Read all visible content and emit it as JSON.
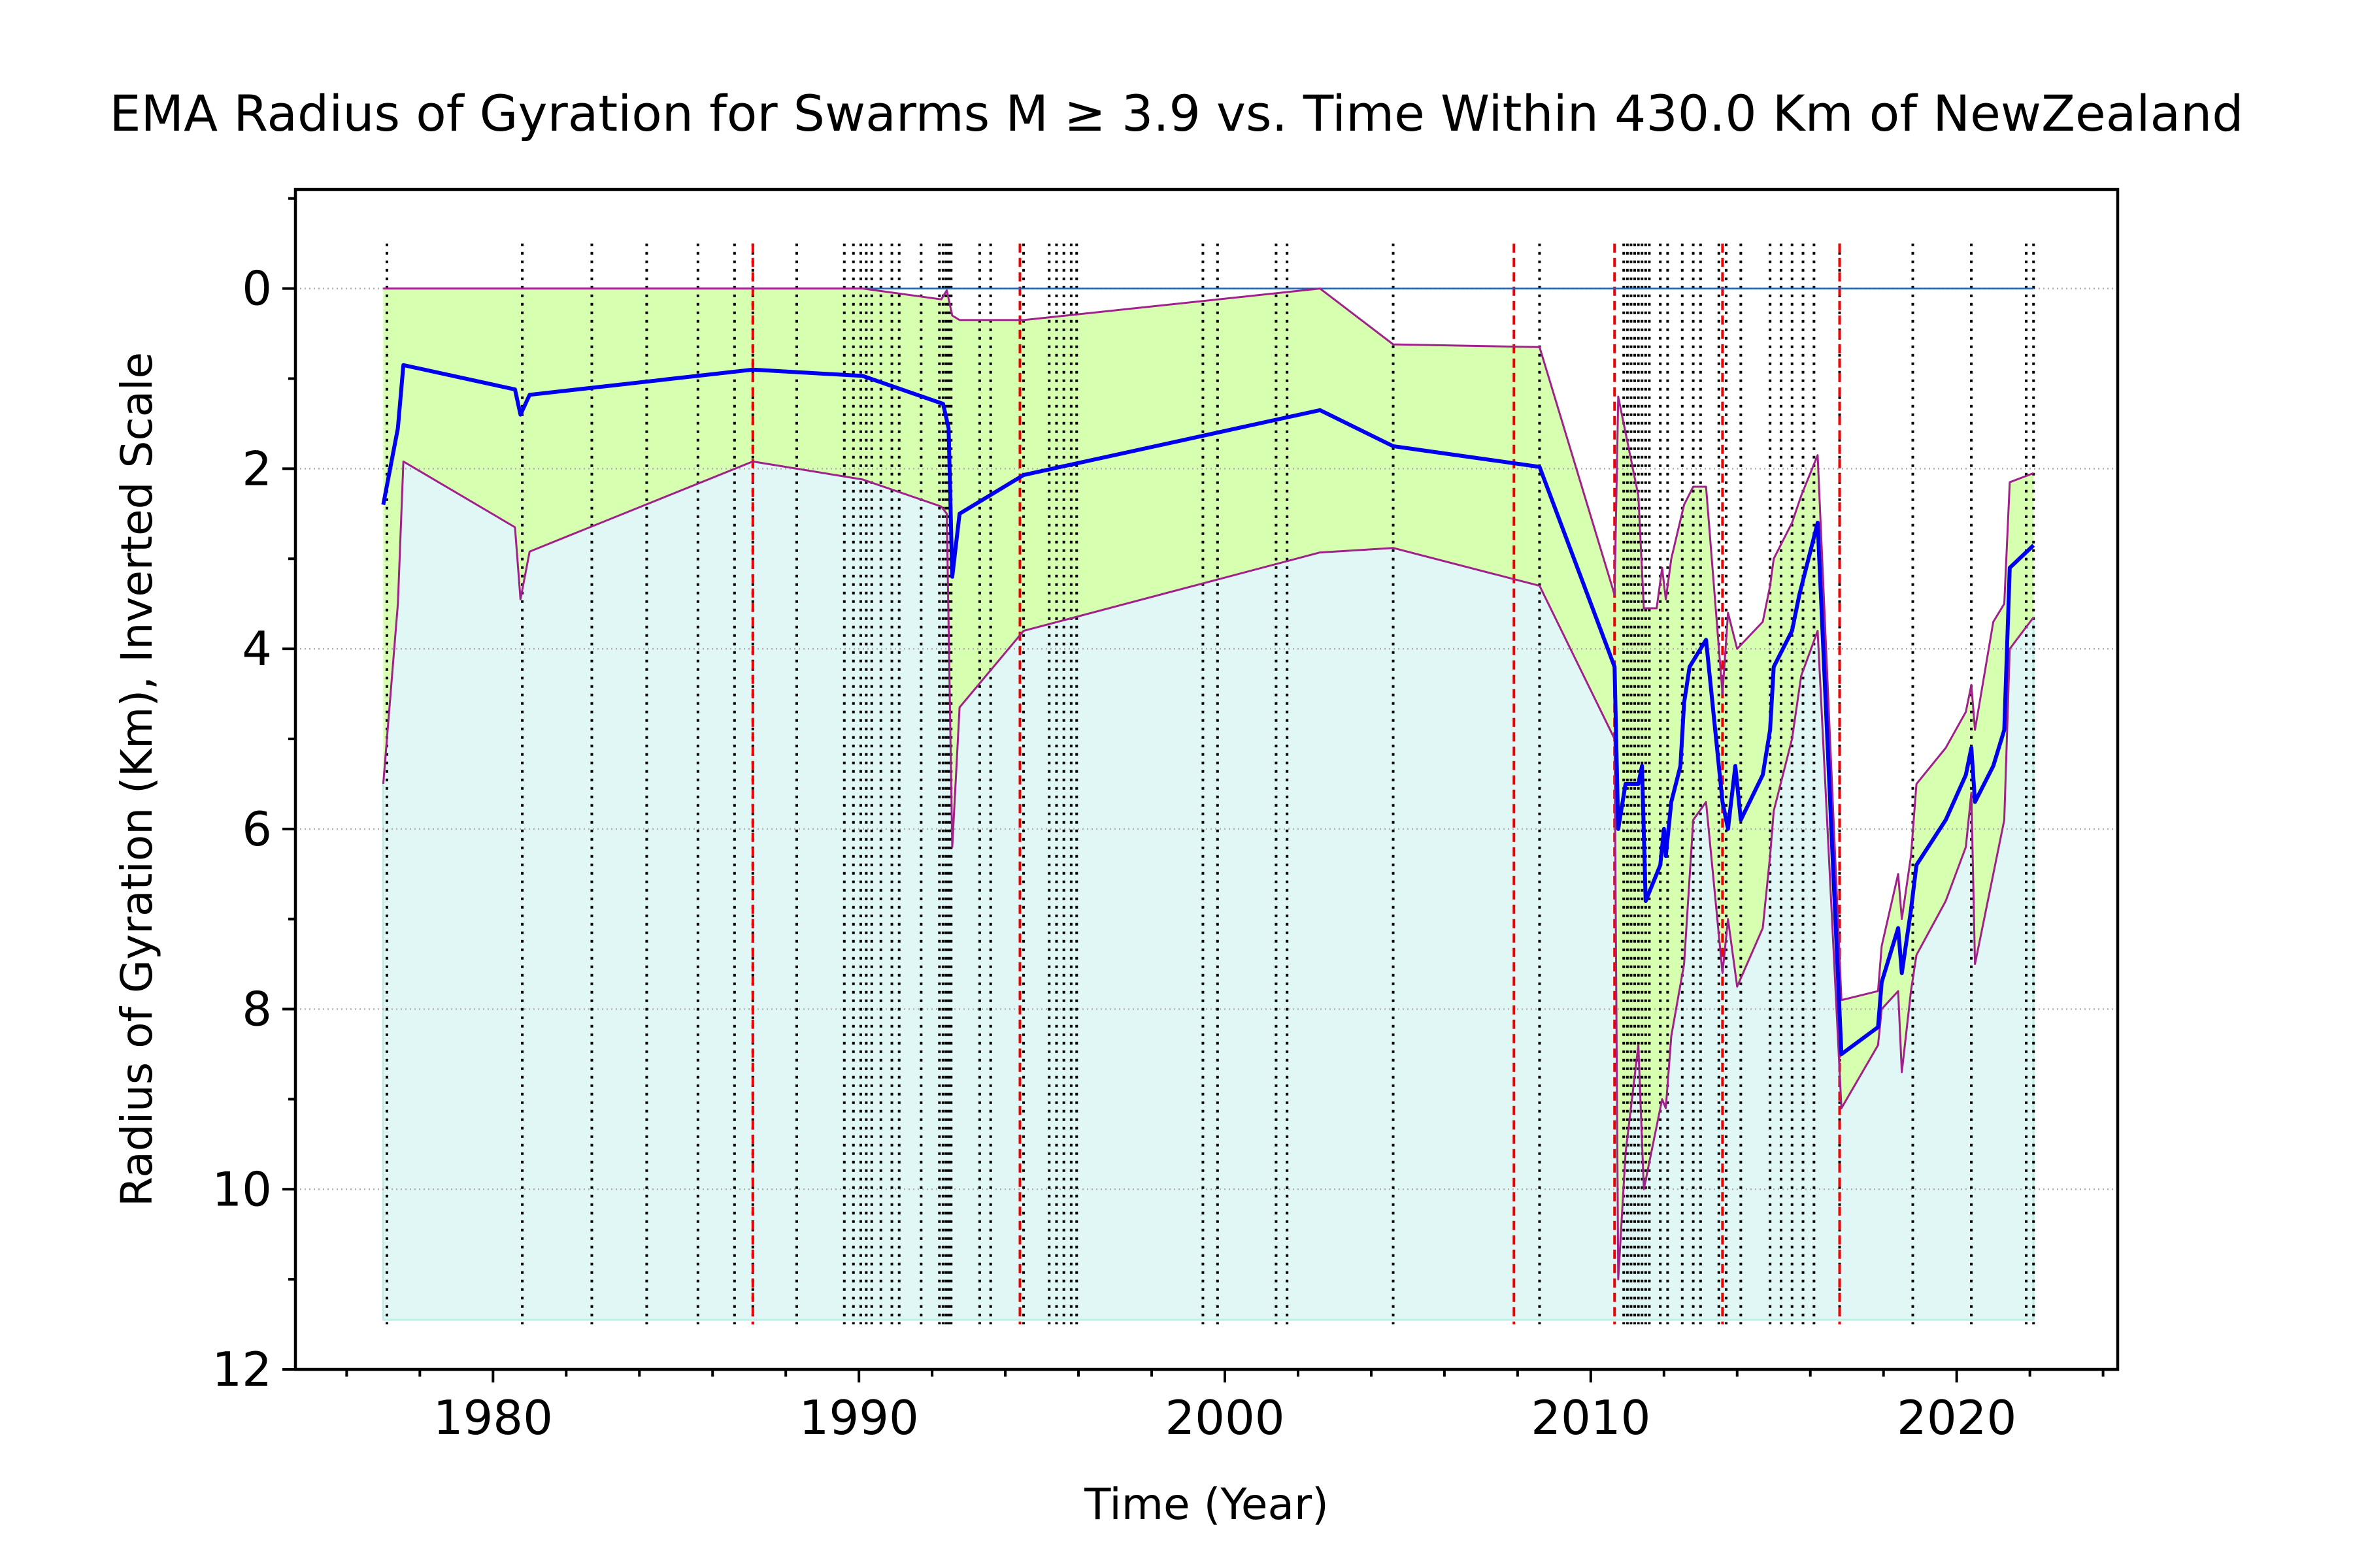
{
  "chart_data": {
    "type": "line",
    "title": "EMA Radius of Gyration for Swarms M ≥ 3.9 vs. Time Within 430.0 Km of NewZealand",
    "xlabel": "Time (Year)",
    "ylabel": "Radius of Gyration (Km), Inverted Scale",
    "xlim": [
      1974.6,
      2024.4
    ],
    "ylim": [
      12,
      -1.1
    ],
    "y_inverted": true,
    "grid": "horizontal dotted",
    "x_ticks": [
      1980,
      1990,
      2000,
      2010,
      2020
    ],
    "y_ticks": [
      0,
      2,
      4,
      6,
      8,
      10,
      12
    ],
    "colors": {
      "ema_line": "#0000ee",
      "band_edge": "#a0208c",
      "band_fill": "#d7ffb0",
      "base_fill": "#e0f7f5",
      "zero_line": "#1f5fb4",
      "event_black": "#000000",
      "event_red": "#ee0000"
    },
    "base_fill_depth": 11.45,
    "series": [
      {
        "role": "ema",
        "x": [
          1977.0,
          1977.4,
          1977.55,
          1980.6,
          1980.75,
          1981.0,
          1987.1,
          1990.1,
          1992.3,
          1992.45,
          1992.55,
          1992.75,
          1994.5,
          2002.6,
          2004.6,
          2008.6,
          2010.65,
          2010.75,
          2010.95,
          2011.3,
          2011.4,
          2011.5,
          2011.9,
          2012.0,
          2012.05,
          2012.2,
          2012.45,
          2012.55,
          2012.7,
          2013.15,
          2013.6,
          2013.75,
          2013.95,
          2014.1,
          2014.7,
          2014.9,
          2015.0,
          2015.5,
          2015.7,
          2015.95,
          2016.2,
          2016.85,
          2017.85,
          2017.95,
          2018.4,
          2018.5,
          2018.75,
          2018.9,
          2019.7,
          2020.25,
          2020.4,
          2020.5,
          2021.0,
          2021.3,
          2021.45,
          2022.1
        ],
        "y": [
          2.4,
          1.55,
          0.85,
          1.12,
          1.4,
          1.18,
          0.9,
          0.97,
          1.28,
          1.55,
          3.2,
          2.5,
          2.07,
          1.35,
          1.75,
          1.98,
          4.2,
          6.0,
          5.5,
          5.5,
          5.3,
          6.8,
          6.4,
          6.0,
          6.3,
          5.7,
          5.3,
          4.6,
          4.2,
          3.9,
          5.7,
          6.0,
          5.3,
          5.9,
          5.4,
          4.9,
          4.2,
          3.8,
          3.4,
          3.0,
          2.6,
          8.5,
          8.2,
          7.7,
          7.1,
          7.6,
          6.9,
          6.4,
          5.9,
          5.4,
          5.1,
          5.7,
          5.3,
          4.9,
          3.1,
          2.85
        ]
      },
      {
        "role": "band_upper",
        "x": [
          1977.0,
          1977.4,
          1977.55,
          1987.1,
          1990.1,
          1992.25,
          1992.4,
          1992.55,
          1992.75,
          1994.5,
          2002.6,
          2004.6,
          2008.6,
          2010.65,
          2010.75,
          2010.95,
          2011.3,
          2011.45,
          2011.8,
          2011.95,
          2012.05,
          2012.2,
          2012.55,
          2012.8,
          2013.15,
          2013.6,
          2013.75,
          2014.0,
          2014.7,
          2014.9,
          2015.0,
          2015.5,
          2015.75,
          2016.2,
          2016.85,
          2017.85,
          2017.95,
          2018.4,
          2018.5,
          2018.75,
          2018.9,
          2019.7,
          2020.25,
          2020.4,
          2020.5,
          2021.0,
          2021.3,
          2021.45,
          2022.1
        ],
        "y": [
          0.0,
          0.0,
          0.0,
          0.0,
          0.0,
          0.12,
          0.02,
          0.3,
          0.35,
          0.35,
          0.0,
          0.62,
          0.65,
          3.4,
          1.2,
          1.6,
          2.3,
          3.55,
          3.55,
          3.1,
          3.45,
          3.0,
          2.4,
          2.2,
          2.2,
          4.5,
          3.6,
          4.0,
          3.7,
          3.3,
          3.0,
          2.6,
          2.3,
          1.85,
          7.9,
          7.8,
          7.3,
          6.5,
          7.0,
          6.3,
          5.5,
          5.1,
          4.7,
          4.4,
          4.9,
          3.7,
          3.5,
          2.15,
          2.05
        ]
      },
      {
        "role": "band_lower",
        "x": [
          1977.0,
          1977.4,
          1977.55,
          1980.6,
          1980.75,
          1981.0,
          1987.1,
          1990.1,
          1992.25,
          1992.4,
          1992.55,
          1992.75,
          1994.5,
          2002.6,
          2004.6,
          2008.6,
          2010.65,
          2010.75,
          2010.95,
          2011.3,
          2011.45,
          2011.95,
          2012.05,
          2012.2,
          2012.55,
          2012.8,
          2013.15,
          2013.6,
          2013.75,
          2014.0,
          2014.7,
          2014.9,
          2015.0,
          2015.5,
          2015.75,
          2016.2,
          2016.85,
          2017.85,
          2017.95,
          2018.4,
          2018.5,
          2018.75,
          2018.9,
          2019.7,
          2020.25,
          2020.4,
          2020.5,
          2021.0,
          2021.3,
          2021.45,
          2022.1
        ],
        "y": [
          5.5,
          3.5,
          1.92,
          2.65,
          3.45,
          2.92,
          1.92,
          2.12,
          2.42,
          2.5,
          6.2,
          4.65,
          3.8,
          2.93,
          2.88,
          3.3,
          5.0,
          11.0,
          9.6,
          8.4,
          10.0,
          9.0,
          9.1,
          8.3,
          7.5,
          5.9,
          5.7,
          7.6,
          7.0,
          7.75,
          7.1,
          6.3,
          5.8,
          5.0,
          4.3,
          3.8,
          9.1,
          8.4,
          8.0,
          7.8,
          8.7,
          7.8,
          7.4,
          6.8,
          6.2,
          5.6,
          7.5,
          6.5,
          5.9,
          4.0,
          3.65
        ]
      }
    ],
    "event_lines_black": [
      1977.1,
      1980.8,
      1982.7,
      1984.2,
      1985.6,
      1986.6,
      1987.1,
      1988.3,
      1989.6,
      1989.85,
      1990.05,
      1990.2,
      1990.35,
      1990.6,
      1990.9,
      1991.1,
      1991.7,
      1992.2,
      1992.3,
      1992.38,
      1992.45,
      1992.52,
      1993.3,
      1993.6,
      1994.5,
      1995.2,
      1995.4,
      1995.6,
      1995.8,
      1995.95,
      1999.4,
      1999.8,
      2001.4,
      2001.7,
      2004.6,
      2008.6,
      2010.9,
      2011.0,
      2011.1,
      2011.2,
      2011.3,
      2011.4,
      2011.5,
      2011.6,
      2011.9,
      2012.1,
      2012.5,
      2012.8,
      2013.0,
      2013.5,
      2013.7,
      2014.1,
      2014.9,
      2015.2,
      2015.5,
      2015.8,
      2016.1,
      2016.8,
      2018.8,
      2020.4,
      2021.9,
      2022.1
    ],
    "event_lines_red": [
      1987.1,
      1994.4,
      2007.9,
      2010.65,
      2013.6,
      2016.8
    ]
  }
}
